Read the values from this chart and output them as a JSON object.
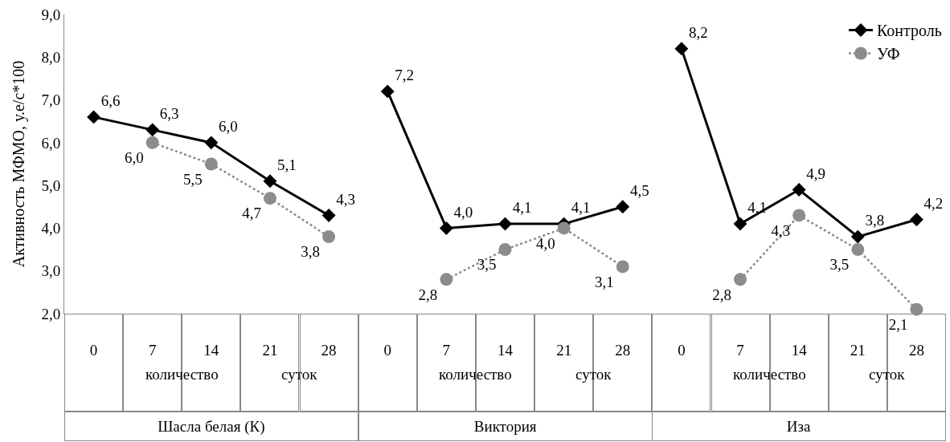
{
  "chart_data": {
    "type": "line",
    "ylabel": "Активность МФМО, у.е/с*100",
    "categories": [
      "0",
      "7",
      "14",
      "21",
      "28",
      "0",
      "7",
      "14",
      "21",
      "28",
      "0",
      "7",
      "14",
      "21",
      "28"
    ],
    "series": [
      {
        "name": "Контроль",
        "color": "#000000",
        "marker": "diamond",
        "line_style": "solid",
        "values": [
          6.6,
          6.3,
          6.0,
          5.1,
          4.3,
          null,
          null,
          null,
          null,
          null,
          null,
          null,
          null,
          null,
          null
        ],
        "value_labels": [
          "6,6",
          "6,3",
          "6,0",
          "5,1",
          "4,3",
          null,
          null,
          null,
          null,
          null,
          null,
          null,
          null,
          null,
          null
        ]
      },
      {
        "color": "#000000",
        "marker": "diamond",
        "line_style": "solid",
        "values": [
          null,
          null,
          null,
          null,
          null,
          7.2,
          4.0,
          4.1,
          4.1,
          4.5,
          null,
          null,
          null,
          null,
          null
        ],
        "value_labels": [
          null,
          null,
          null,
          null,
          null,
          "7,2",
          "4,0",
          "4,1",
          "4,1",
          "4,5",
          null,
          null,
          null,
          null,
          null
        ]
      },
      {
        "color": "#000000",
        "marker": "diamond",
        "line_style": "solid",
        "values": [
          null,
          null,
          null,
          null,
          null,
          null,
          null,
          null,
          null,
          null,
          8.2,
          4.1,
          4.9,
          3.8,
          4.2
        ],
        "value_labels": [
          null,
          null,
          null,
          null,
          null,
          null,
          null,
          null,
          null,
          null,
          "8,2",
          "4,1",
          "4,9",
          "3,8",
          "4,2"
        ]
      },
      {
        "name": "УФ",
        "color": "#8c8c8c",
        "marker": "circle",
        "line_style": "dotted",
        "values": [
          null,
          6.0,
          5.5,
          4.7,
          3.8,
          null,
          null,
          null,
          null,
          null,
          null,
          null,
          null,
          null,
          null
        ],
        "value_labels": [
          null,
          "6,0",
          "5,5",
          "4,7",
          "3,8",
          null,
          null,
          null,
          null,
          null,
          null,
          null,
          null,
          null,
          null
        ]
      },
      {
        "color": "#8c8c8c",
        "marker": "circle",
        "line_style": "dotted",
        "values": [
          null,
          null,
          null,
          null,
          null,
          null,
          2.8,
          3.5,
          4.0,
          3.1,
          null,
          null,
          null,
          null,
          null
        ],
        "value_labels": [
          null,
          null,
          null,
          null,
          null,
          null,
          "2,8",
          "3,5",
          "4,0",
          "3,1",
          null,
          null,
          null,
          null,
          null
        ]
      },
      {
        "color": "#8c8c8c",
        "marker": "circle",
        "line_style": "dotted",
        "values": [
          null,
          null,
          null,
          null,
          null,
          null,
          null,
          null,
          null,
          null,
          null,
          2.8,
          4.3,
          3.5,
          2.1
        ],
        "value_labels": [
          null,
          null,
          null,
          null,
          null,
          null,
          null,
          null,
          null,
          null,
          null,
          "2,8",
          "4,3",
          "3,5",
          "2,1"
        ]
      }
    ],
    "ylim": [
      2.0,
      9.0
    ],
    "yticks": [
      {
        "value": 2,
        "label": "2,0"
      },
      {
        "value": 3,
        "label": "3,0"
      },
      {
        "value": 4,
        "label": "4,0"
      },
      {
        "value": 5,
        "label": "5,0"
      },
      {
        "value": 6,
        "label": "6,0"
      },
      {
        "value": 7,
        "label": "7,0"
      },
      {
        "value": 8,
        "label": "8,0"
      },
      {
        "value": 9,
        "label": "9,0"
      }
    ],
    "annotations": [
      "Шасла белая (К)",
      "количество",
      "суток",
      "Виктория",
      "количество",
      "суток",
      "Иза",
      "количество",
      "суток"
    ],
    "grid": false,
    "legend": "top right"
  }
}
